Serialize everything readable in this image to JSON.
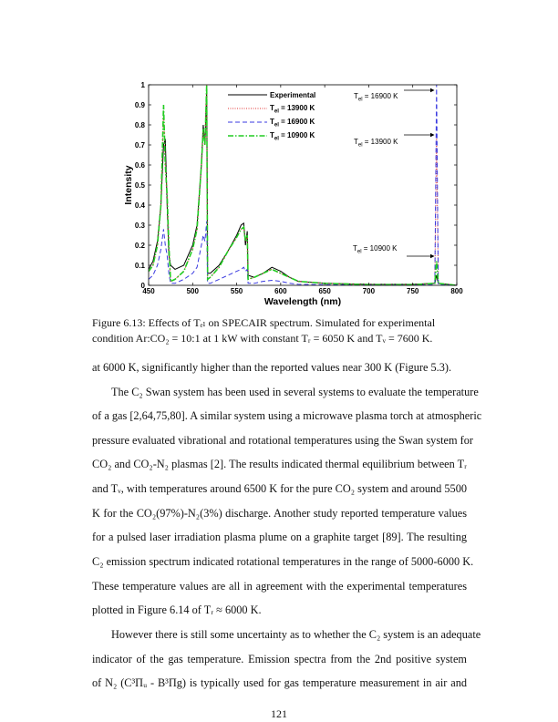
{
  "chart_data": {
    "type": "line",
    "xlabel": "Wavelength (nm)",
    "ylabel": "Intensity",
    "xlim": [
      450,
      800
    ],
    "ylim": [
      0,
      1
    ],
    "xticks": [
      "450",
      "500",
      "550",
      "600",
      "650",
      "700",
      "750",
      "800"
    ],
    "yticks": [
      "0",
      "0.1",
      "0.2",
      "0.3",
      "0.4",
      "0.5",
      "0.6",
      "0.7",
      "0.8",
      "0.9",
      "1"
    ],
    "grid": false,
    "legend_position": "top-center",
    "x": [
      450,
      455,
      460,
      464,
      467,
      469,
      471,
      473,
      475,
      480,
      490,
      500,
      505,
      510,
      512,
      514,
      516,
      517,
      520,
      530,
      540,
      550,
      555,
      558,
      560,
      562,
      563,
      570,
      580,
      590,
      600,
      610,
      620,
      650,
      700,
      750,
      775,
      777,
      779,
      800
    ],
    "series": [
      {
        "name": "Experimental",
        "color": "#000000",
        "style": "solid",
        "values": [
          0.08,
          0.12,
          0.22,
          0.4,
          0.7,
          0.73,
          0.4,
          0.15,
          0.1,
          0.08,
          0.1,
          0.2,
          0.3,
          0.6,
          0.8,
          0.7,
          0.98,
          0.06,
          0.06,
          0.1,
          0.17,
          0.25,
          0.3,
          0.31,
          0.2,
          0.27,
          0.05,
          0.04,
          0.06,
          0.09,
          0.07,
          0.04,
          0.02,
          0.01,
          0.005,
          0.005,
          0.01,
          0.05,
          0.01,
          0
        ]
      },
      {
        "name": "T_el = 13900 K",
        "label_main": "T",
        "label_sub": "el",
        "label_rest": " = 13900 K",
        "color": "#e03030",
        "style": "dotted",
        "values": [
          0.07,
          0.1,
          0.2,
          0.4,
          0.88,
          0.6,
          0.45,
          0.2,
          0.02,
          0.03,
          0.07,
          0.18,
          0.28,
          0.6,
          0.78,
          0.7,
          1.0,
          0.03,
          0.04,
          0.09,
          0.17,
          0.24,
          0.28,
          0.29,
          0.22,
          0.25,
          0.03,
          0.04,
          0.06,
          0.08,
          0.06,
          0.04,
          0.02,
          0.01,
          0.003,
          0.003,
          0.01,
          0.75,
          0.01,
          0
        ]
      },
      {
        "name": "T_el = 16900 K",
        "label_main": "T",
        "label_sub": "el",
        "label_rest": " = 16900 K",
        "color": "#3a3ae0",
        "style": "dashed",
        "values": [
          0.03,
          0.05,
          0.1,
          0.18,
          0.28,
          0.2,
          0.15,
          0.06,
          0.01,
          0.01,
          0.03,
          0.06,
          0.09,
          0.2,
          0.25,
          0.22,
          0.32,
          0.01,
          0.01,
          0.03,
          0.05,
          0.07,
          0.08,
          0.09,
          0.07,
          0.08,
          0.01,
          0.01,
          0.02,
          0.025,
          0.02,
          0.01,
          0.005,
          0.003,
          0.001,
          0.001,
          0.005,
          1.0,
          0.005,
          0
        ]
      },
      {
        "name": "T_el = 10900 K",
        "label_main": "T",
        "label_sub": "el",
        "label_rest": " = 10900 K",
        "color": "#22cc22",
        "style": "dashdot",
        "values": [
          0.07,
          0.1,
          0.2,
          0.4,
          0.9,
          0.6,
          0.45,
          0.2,
          0.02,
          0.03,
          0.07,
          0.18,
          0.28,
          0.6,
          0.78,
          0.7,
          1.0,
          0.03,
          0.04,
          0.09,
          0.17,
          0.24,
          0.28,
          0.29,
          0.22,
          0.25,
          0.03,
          0.04,
          0.06,
          0.08,
          0.06,
          0.04,
          0.02,
          0.01,
          0.003,
          0.003,
          0.01,
          0.12,
          0.01,
          0
        ]
      }
    ],
    "annotations": [
      {
        "main": "T",
        "sub": "el",
        "rest": " = 16900 K",
        "x": 777,
        "y": 0.96
      },
      {
        "main": "T",
        "sub": "el",
        "rest": " = 13900 K",
        "x": 777,
        "y": 0.75
      },
      {
        "main": "T",
        "sub": "el",
        "rest": " = 10900 K",
        "x": 777,
        "y": 0.12
      }
    ]
  },
  "caption": [
    "Figure 6.13:  Effects of Tₑₗ on SPECAIR spectrum.  Simulated for experimental",
    "condition Ar:CO₂ = 10:1 at 1 kW with constant Tᵣ = 6050 K and Tᵥ = 7600 K."
  ],
  "body_lines": [
    "at 6000 K, significantly higher than the reported values near 300 K (Figure 5.3).",
    "The C₂ Swan system has been used in several systems to evaluate the temperature",
    "of a gas [2,64,75,80]. A similar system using a microwave plasma torch at atmospheric",
    "pressure evaluated vibrational and rotational temperatures using the Swan system for",
    "CO₂ and CO₂-N₂ plasmas [2]. The results indicated thermal equilibrium between Tᵣ",
    "and Tᵥ, with temperatures around 6500 K for the pure CO₂ system and around 5500",
    "K for the CO₂(97%)-N₂(3%) discharge. Another study reported temperature values",
    "for a pulsed laser irradiation plasma plume on a graphite target [89]. The resulting",
    "C₂ emission spectrum indicated rotational temperatures in the range of 5000-6000 K.",
    "These temperature values are all in agreement with the experimental temperatures",
    "plotted in Figure 6.14 of Tᵣ ≈ 6000 K.",
    "However there is still some uncertainty as to whether the C₂ system is an adequate",
    "indicator of the gas temperature.  Emission spectra from the 2nd positive system",
    "of N₂ (C³Πᵤ - B³Πg) is typically used for gas temperature measurement in air and"
  ],
  "page_number": "121"
}
